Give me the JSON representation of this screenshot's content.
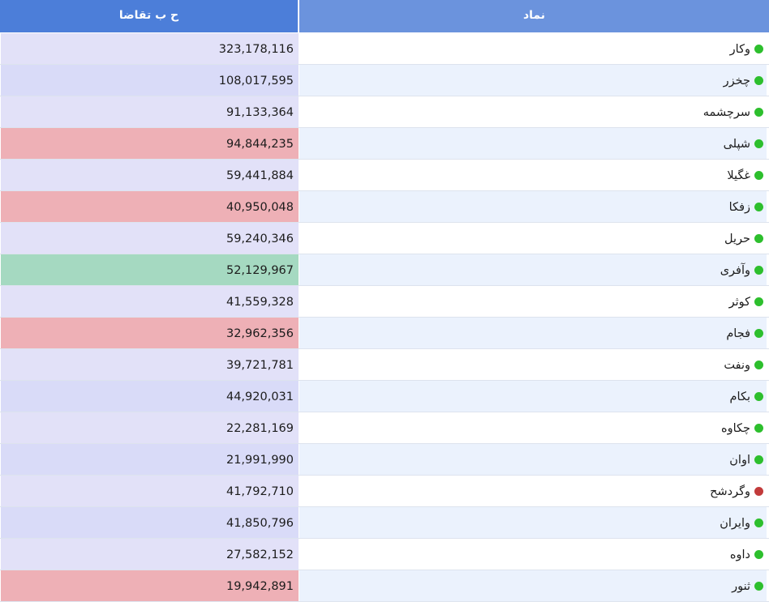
{
  "header": {
    "demand_label": "ح ب تقاضا",
    "symbol_label": "نماد"
  },
  "colors": {
    "normal": "#e2e1f8",
    "red": "#eeb0b6",
    "green": "#a5d9c1",
    "status_green": "#2dbf2d",
    "status_red": "#c23b3b"
  },
  "rows": [
    {
      "symbol": "وکار",
      "demand": "323,178,116",
      "highlight": "normal",
      "status": "green"
    },
    {
      "symbol": "چخزر",
      "demand": "108,017,595",
      "highlight": "normal",
      "status": "green"
    },
    {
      "symbol": "سرچشمه",
      "demand": "91,133,364",
      "highlight": "normal",
      "status": "green"
    },
    {
      "symbol": "شپلی",
      "demand": "94,844,235",
      "highlight": "red",
      "status": "green"
    },
    {
      "symbol": "غگیلا",
      "demand": "59,441,884",
      "highlight": "normal",
      "status": "green"
    },
    {
      "symbol": "زفکا",
      "demand": "40,950,048",
      "highlight": "red",
      "status": "green"
    },
    {
      "symbol": "حریل",
      "demand": "59,240,346",
      "highlight": "normal",
      "status": "green"
    },
    {
      "symbol": "وآفری",
      "demand": "52,129,967",
      "highlight": "green",
      "status": "green"
    },
    {
      "symbol": "کوثر",
      "demand": "41,559,328",
      "highlight": "normal",
      "status": "green"
    },
    {
      "symbol": "فجام",
      "demand": "32,962,356",
      "highlight": "red",
      "status": "green"
    },
    {
      "symbol": "ونفت",
      "demand": "39,721,781",
      "highlight": "normal",
      "status": "green"
    },
    {
      "symbol": "بکام",
      "demand": "44,920,031",
      "highlight": "normal",
      "status": "green"
    },
    {
      "symbol": "چکاوه",
      "demand": "22,281,169",
      "highlight": "normal",
      "status": "green"
    },
    {
      "symbol": "اوان",
      "demand": "21,991,990",
      "highlight": "normal",
      "status": "green"
    },
    {
      "symbol": "وگردشح",
      "demand": "41,792,710",
      "highlight": "normal",
      "status": "red"
    },
    {
      "symbol": "وایران",
      "demand": "41,850,796",
      "highlight": "normal",
      "status": "green"
    },
    {
      "symbol": "داوه",
      "demand": "27,582,152",
      "highlight": "normal",
      "status": "green"
    },
    {
      "symbol": "ثنور",
      "demand": "19,942,891",
      "highlight": "red",
      "status": "green"
    }
  ]
}
